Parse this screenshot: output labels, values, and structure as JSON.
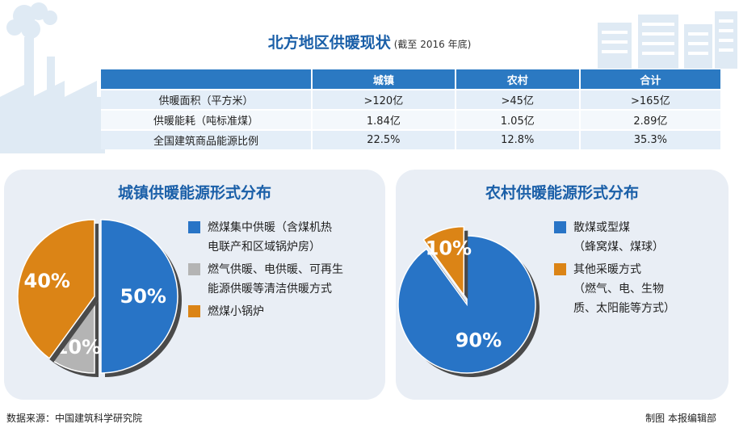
{
  "title": "北方地区供暖现状",
  "subtitle": "(截至 2016 年底)",
  "table": {
    "headers": [
      "",
      "城镇",
      "农村",
      "合计"
    ],
    "rows": [
      [
        "供暖面积（平方米）",
        ">120亿",
        ">45亿",
        ">165亿"
      ],
      [
        "供暖能耗（吨标准煤）",
        "1.84亿",
        "1.05亿",
        "2.89亿"
      ],
      [
        "全国建筑商品能源比例",
        "22.5%",
        "12.8%",
        "35.3%"
      ]
    ]
  },
  "chart_data": [
    {
      "type": "pie",
      "title": "城镇供暖能源形式分布",
      "labels": [
        "燃煤集中供暖（含煤机热电联产和区域锅炉房）",
        "燃气供暖、电供暖、可再生能源供暖等清洁供暖方式",
        "燃煤小锅炉"
      ],
      "values": [
        50,
        10,
        40
      ],
      "value_labels": [
        "50%",
        "10%",
        "40%"
      ],
      "colors": [
        "#2874c6",
        "#b4b4b4",
        "#db8416"
      ],
      "legend_lines": [
        [
          "燃煤集中供暖（含煤机热",
          "电联产和区域锅炉房）"
        ],
        [
          "燃气供暖、电供暖、可再生",
          "能源供暖等清洁供暖方式"
        ],
        [
          "燃煤小锅炉"
        ]
      ]
    },
    {
      "type": "pie",
      "title": "农村供暖能源形式分布",
      "labels": [
        "散煤或型煤（蜂窝煤、煤球）",
        "其他采暖方式（燃气、电、生物质、太阳能等方式）"
      ],
      "values": [
        90,
        10
      ],
      "value_labels": [
        "90%",
        "10%"
      ],
      "colors": [
        "#2874c6",
        "#db8416"
      ],
      "legend_lines": [
        [
          "散煤或型煤",
          "（蜂窝煤、煤球）"
        ],
        [
          "其他采暖方式",
          "（燃气、电、生物",
          "质、太阳能等方式）"
        ]
      ]
    }
  ],
  "footer": {
    "source": "数据来源：中国建筑科学研究院",
    "credit": "制图  本报编辑部"
  }
}
